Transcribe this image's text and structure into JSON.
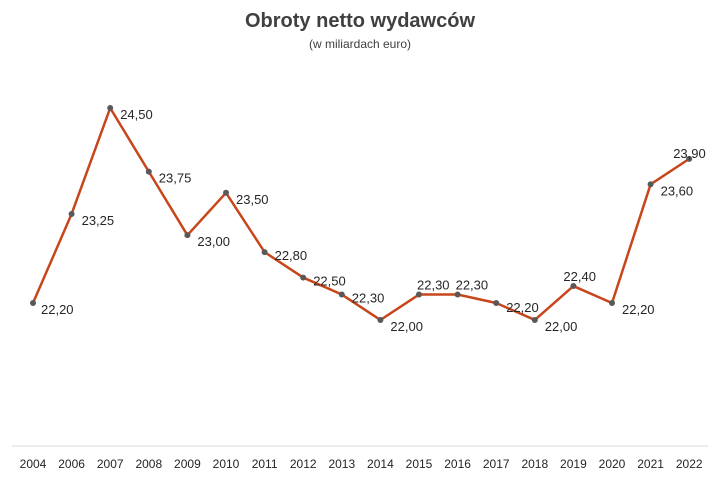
{
  "chart_data": {
    "type": "line",
    "title": "Obroty netto wydawców",
    "subtitle": "(w miliardach euro)",
    "xlabel": "",
    "ylabel": "",
    "categories": [
      "2004",
      "2006",
      "2007",
      "2008",
      "2009",
      "2010",
      "2011",
      "2012",
      "2013",
      "2014",
      "2015",
      "2016",
      "2017",
      "2018",
      "2019",
      "2020",
      "2021",
      "2022"
    ],
    "series": [
      {
        "values": [
          22.2,
          23.25,
          24.5,
          23.75,
          23.0,
          23.5,
          22.8,
          22.5,
          22.3,
          22.0,
          22.3,
          22.3,
          22.2,
          22.0,
          22.4,
          22.2,
          23.6,
          23.9
        ],
        "labels": [
          "22,20",
          "23,25",
          "24,50",
          "23,75",
          "23,00",
          "23,50",
          "22,80",
          "22,50",
          "22,30",
          "22,00",
          "22,30",
          "22,30",
          "22,20",
          "22,00",
          "22,40",
          "22,20",
          "23,60",
          "23,90"
        ]
      }
    ],
    "grid": false,
    "legend": "none",
    "colors": {
      "line": "#c8461b",
      "marker": "#595959",
      "axis": "#d9d9d9",
      "text": "#262626"
    }
  }
}
